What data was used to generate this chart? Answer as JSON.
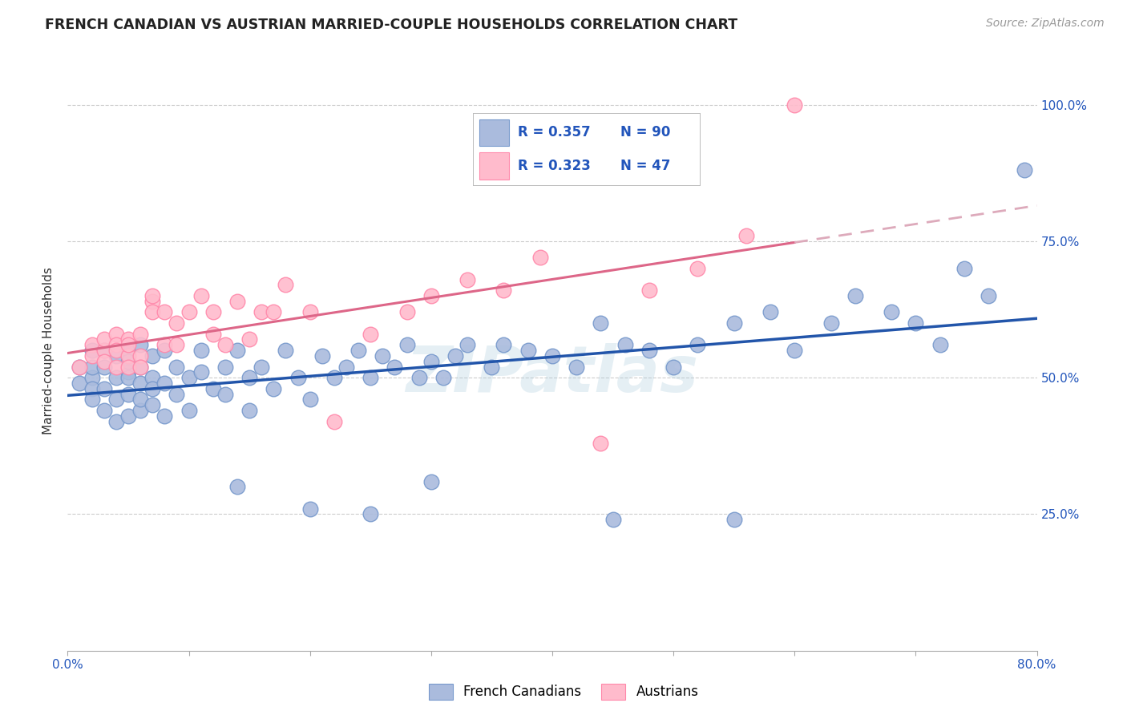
{
  "title": "FRENCH CANADIAN VS AUSTRIAN MARRIED-COUPLE HOUSEHOLDS CORRELATION CHART",
  "source": "Source: ZipAtlas.com",
  "ylabel": "Married-couple Households",
  "xlim": [
    0.0,
    0.8
  ],
  "ylim": [
    0.0,
    1.1
  ],
  "blue_color": "#AABBDD",
  "blue_edge_color": "#7799CC",
  "pink_color": "#FFBBCC",
  "pink_edge_color": "#FF88AA",
  "blue_line_color": "#2255AA",
  "pink_line_color": "#DD6688",
  "pink_dash_color": "#DDAABB",
  "legend_r_blue": "0.357",
  "legend_n_blue": "90",
  "legend_r_pink": "0.323",
  "legend_n_pink": "47",
  "watermark": "ZIPatlas",
  "background_color": "#ffffff",
  "grid_color": "#cccccc",
  "blue_scatter_x": [
    0.01,
    0.01,
    0.02,
    0.02,
    0.02,
    0.02,
    0.02,
    0.03,
    0.03,
    0.03,
    0.03,
    0.04,
    0.04,
    0.04,
    0.04,
    0.05,
    0.05,
    0.05,
    0.05,
    0.05,
    0.05,
    0.06,
    0.06,
    0.06,
    0.06,
    0.06,
    0.07,
    0.07,
    0.07,
    0.07,
    0.08,
    0.08,
    0.08,
    0.09,
    0.09,
    0.1,
    0.1,
    0.11,
    0.11,
    0.12,
    0.13,
    0.13,
    0.14,
    0.15,
    0.15,
    0.16,
    0.17,
    0.18,
    0.19,
    0.2,
    0.21,
    0.22,
    0.23,
    0.24,
    0.25,
    0.26,
    0.27,
    0.28,
    0.29,
    0.3,
    0.31,
    0.32,
    0.33,
    0.35,
    0.36,
    0.38,
    0.4,
    0.42,
    0.44,
    0.46,
    0.48,
    0.5,
    0.52,
    0.55,
    0.58,
    0.6,
    0.63,
    0.65,
    0.68,
    0.7,
    0.72,
    0.74,
    0.76,
    0.79,
    0.14,
    0.2,
    0.25,
    0.3,
    0.45,
    0.55
  ],
  "blue_scatter_y": [
    0.49,
    0.52,
    0.5,
    0.48,
    0.55,
    0.52,
    0.46,
    0.52,
    0.48,
    0.55,
    0.44,
    0.5,
    0.46,
    0.54,
    0.42,
    0.51,
    0.55,
    0.47,
    0.43,
    0.5,
    0.53,
    0.56,
    0.49,
    0.44,
    0.52,
    0.46,
    0.54,
    0.5,
    0.45,
    0.48,
    0.55,
    0.49,
    0.43,
    0.52,
    0.47,
    0.5,
    0.44,
    0.55,
    0.51,
    0.48,
    0.52,
    0.47,
    0.55,
    0.5,
    0.44,
    0.52,
    0.48,
    0.55,
    0.5,
    0.46,
    0.54,
    0.5,
    0.52,
    0.55,
    0.5,
    0.54,
    0.52,
    0.56,
    0.5,
    0.53,
    0.5,
    0.54,
    0.56,
    0.52,
    0.56,
    0.55,
    0.54,
    0.52,
    0.6,
    0.56,
    0.55,
    0.52,
    0.56,
    0.6,
    0.62,
    0.55,
    0.6,
    0.65,
    0.62,
    0.6,
    0.56,
    0.7,
    0.65,
    0.88,
    0.3,
    0.26,
    0.25,
    0.31,
    0.24,
    0.24
  ],
  "pink_scatter_x": [
    0.01,
    0.02,
    0.02,
    0.03,
    0.03,
    0.03,
    0.04,
    0.04,
    0.04,
    0.04,
    0.05,
    0.05,
    0.05,
    0.05,
    0.06,
    0.06,
    0.06,
    0.07,
    0.07,
    0.07,
    0.08,
    0.08,
    0.09,
    0.09,
    0.1,
    0.11,
    0.12,
    0.12,
    0.13,
    0.14,
    0.15,
    0.16,
    0.17,
    0.18,
    0.2,
    0.22,
    0.25,
    0.28,
    0.3,
    0.33,
    0.36,
    0.39,
    0.44,
    0.48,
    0.52,
    0.56,
    0.6
  ],
  "pink_scatter_y": [
    0.52,
    0.56,
    0.54,
    0.55,
    0.57,
    0.53,
    0.58,
    0.56,
    0.52,
    0.55,
    0.54,
    0.57,
    0.52,
    0.56,
    0.58,
    0.54,
    0.52,
    0.64,
    0.65,
    0.62,
    0.56,
    0.62,
    0.56,
    0.6,
    0.62,
    0.65,
    0.62,
    0.58,
    0.56,
    0.64,
    0.57,
    0.62,
    0.62,
    0.67,
    0.62,
    0.42,
    0.58,
    0.62,
    0.65,
    0.68,
    0.66,
    0.72,
    0.38,
    0.66,
    0.7,
    0.76,
    1.0
  ]
}
